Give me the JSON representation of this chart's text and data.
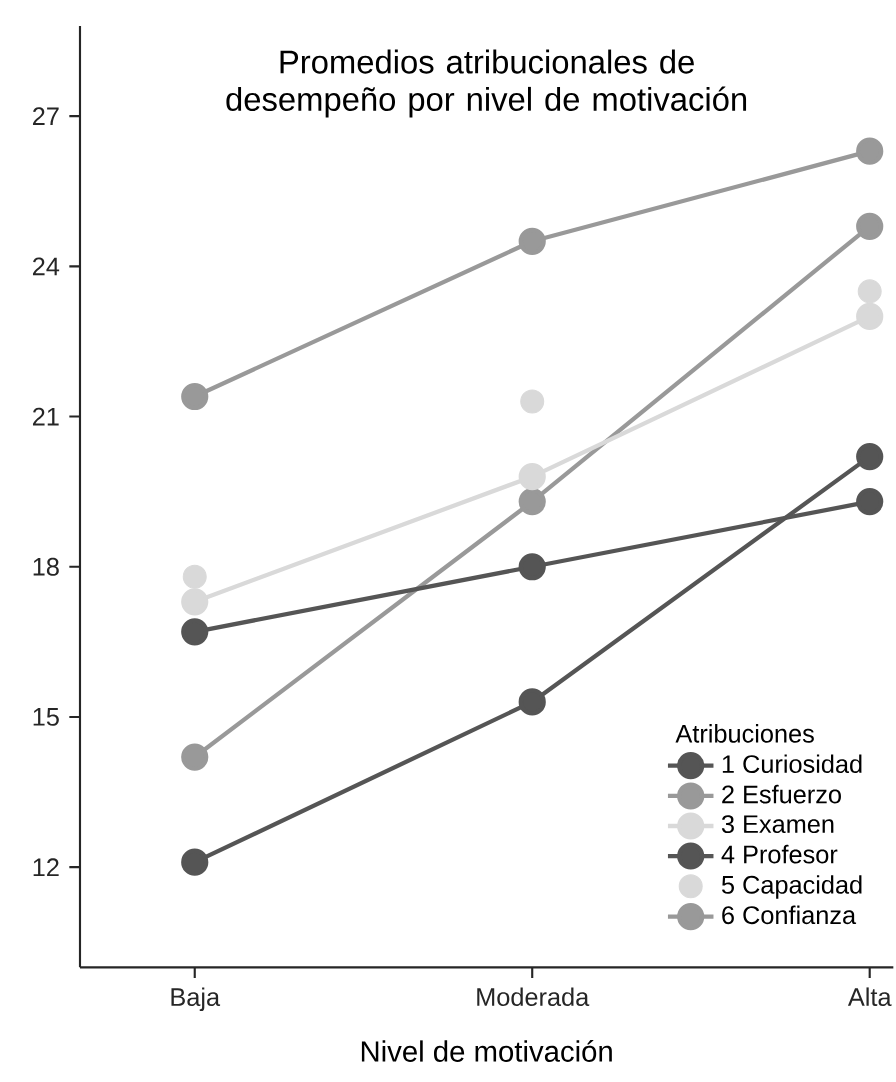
{
  "chart_data": {
    "type": "line",
    "title": "Promedios atribucionales de desempeño por nivel de motivación",
    "xlabel": "Nivel de motivación",
    "legend_title": "Atribuciones",
    "categories": [
      "Baja",
      "Moderada",
      "Alta"
    ],
    "series": [
      {
        "name": "1 Curiosidad",
        "color": "#555555",
        "values": [
          12.1,
          15.3,
          20.2
        ]
      },
      {
        "name": "2 Esfuerzo",
        "color": "#999999",
        "values": [
          14.2,
          19.3,
          24.8
        ]
      },
      {
        "name": "3 Examen",
        "color": "#d9d9d9",
        "values": [
          17.3,
          19.8,
          23.0
        ]
      },
      {
        "name": "4 Profesor",
        "color": "#555555",
        "values": [
          16.7,
          18.0,
          19.3
        ]
      },
      {
        "name": "5 Capacidad",
        "type": "scatter",
        "color": "#d9d9d9",
        "values": [
          17.8,
          21.3,
          23.5
        ]
      },
      {
        "name": "6 Confianza",
        "color": "#999999",
        "values": [
          21.4,
          24.5,
          26.3
        ]
      }
    ],
    "ylim": [
      10,
      28.8
    ],
    "yticks": [
      12,
      15,
      18,
      21,
      24,
      27
    ],
    "grid": false,
    "legend": "bottom right",
    "marker": "circle",
    "line_style": "solid"
  }
}
